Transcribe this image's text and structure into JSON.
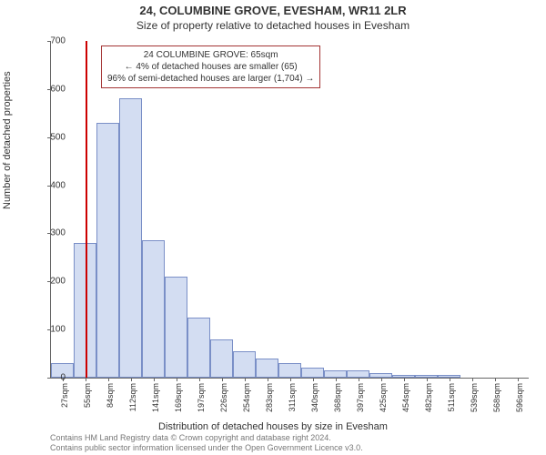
{
  "title_line1": "24, COLUMBINE GROVE, EVESHAM, WR11 2LR",
  "title_line2": "Size of property relative to detached houses in Evesham",
  "ylabel": "Number of detached properties",
  "xlabel": "Distribution of detached houses by size in Evesham",
  "footer_line1": "Contains HM Land Registry data © Crown copyright and database right 2024.",
  "footer_line2": "Contains public sector information licensed under the Open Government Licence v3.0.",
  "chart": {
    "type": "histogram",
    "ylim": [
      0,
      700
    ],
    "ytick_step": 100,
    "yticks": [
      0,
      100,
      200,
      300,
      400,
      500,
      600,
      700
    ],
    "xticks": [
      "27sqm",
      "55sqm",
      "84sqm",
      "112sqm",
      "141sqm",
      "169sqm",
      "197sqm",
      "226sqm",
      "254sqm",
      "283sqm",
      "311sqm",
      "340sqm",
      "368sqm",
      "397sqm",
      "425sqm",
      "454sqm",
      "482sqm",
      "511sqm",
      "539sqm",
      "568sqm",
      "596sqm"
    ],
    "bars": [
      30,
      280,
      530,
      580,
      285,
      210,
      125,
      80,
      55,
      40,
      30,
      20,
      15,
      15,
      10,
      5,
      5,
      5,
      0,
      0,
      0
    ],
    "bar_fill": "#d3ddf2",
    "bar_stroke": "#7a8fc7",
    "marker_color": "#cc0000",
    "marker_bin_index": 1,
    "background_color": "#ffffff",
    "axis_color": "#666666",
    "title_fontsize": 13,
    "label_fontsize": 11,
    "tick_fontsize": 10
  },
  "infobox": {
    "line1": "24 COLUMBINE GROVE: 65sqm",
    "line2": "← 4% of detached houses are smaller (65)",
    "line3": "96% of semi-detached houses are larger (1,704) →",
    "border_color": "#a33333"
  }
}
